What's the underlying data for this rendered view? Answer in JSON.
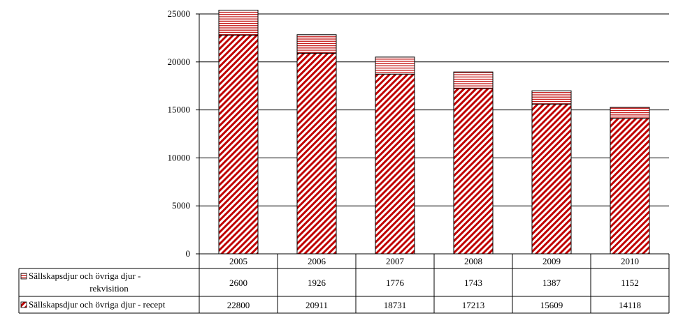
{
  "chart_data": {
    "type": "bar",
    "stacked": true,
    "categories": [
      "2005",
      "2006",
      "2007",
      "2008",
      "2009",
      "2010"
    ],
    "series": [
      {
        "name": "Sällskapsdjur och övriga djur - recept",
        "values": [
          22800,
          20911,
          18731,
          17213,
          15609,
          14118
        ],
        "color": "#c00000",
        "pattern": "diagonal-stripes"
      },
      {
        "name": "Sällskapsdjur och övriga djur - rekvisition",
        "values": [
          2600,
          1926,
          1776,
          1743,
          1387,
          1152
        ],
        "color": "#c00000",
        "pattern": "horizontal-stripes"
      }
    ],
    "table_rows": [
      {
        "label_lines": [
          "Sällskapsdjur och övriga djur -",
          "rekvisition"
        ],
        "values": [
          "2600",
          "1926",
          "1776",
          "1743",
          "1387",
          "1152"
        ],
        "pattern": "horizontal-stripes"
      },
      {
        "label_lines": [
          "Sällskapsdjur och övriga djur - recept"
        ],
        "values": [
          "22800",
          "20911",
          "18731",
          "17213",
          "15609",
          "14118"
        ],
        "pattern": "diagonal-stripes"
      }
    ],
    "ylim": [
      0,
      25000
    ],
    "yticks": [
      "0",
      "5000",
      "10000",
      "15000",
      "20000",
      "25000"
    ],
    "grid": true,
    "title": "",
    "xlabel": "",
    "ylabel": "",
    "legend": "data-table"
  }
}
